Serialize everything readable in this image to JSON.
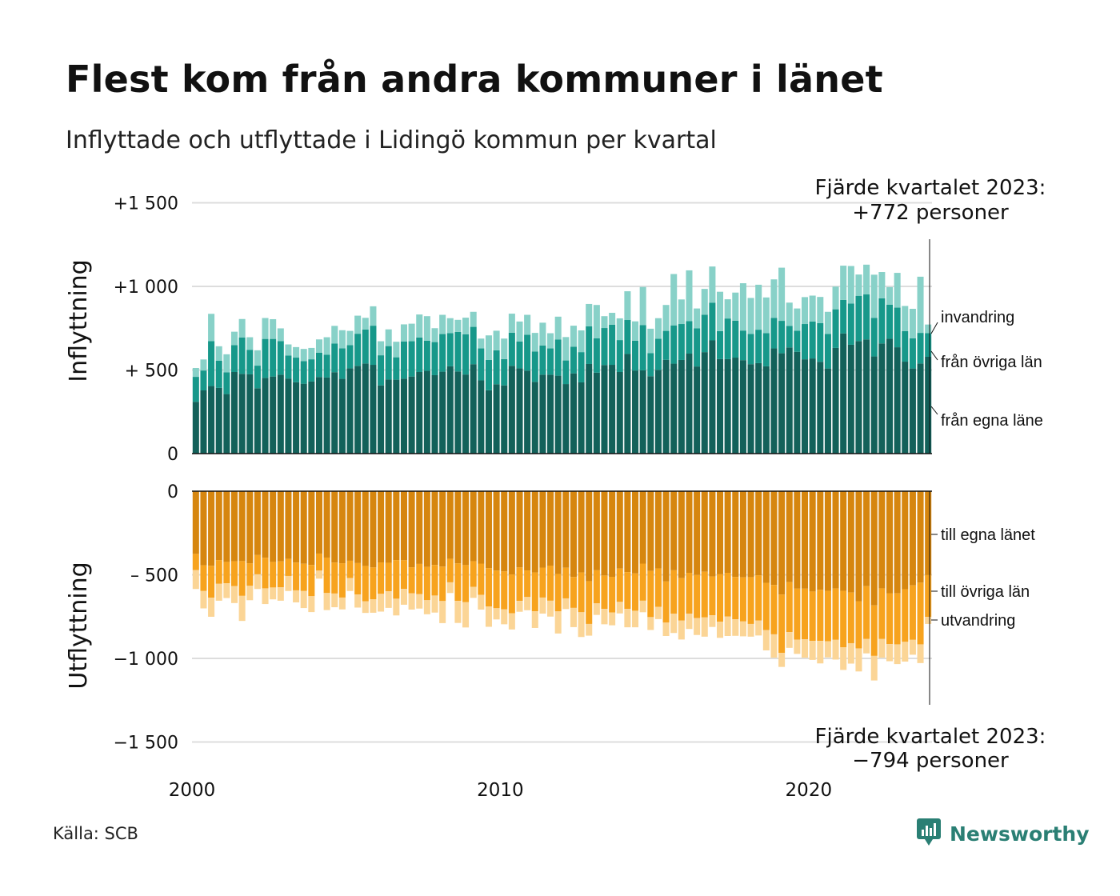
{
  "title": "Flest kom från andra kommuner i länet",
  "subtitle": "Inflyttade och utflyttade i Lidingö kommun per kvartal",
  "source": "Källa: SCB",
  "brand": "Newsworthy",
  "colors": {
    "in_own": "#13615a",
    "in_other": "#17988a",
    "in_imm": "#88d1c8",
    "out_own": "#d6860f",
    "out_other": "#f7a31e",
    "out_emi": "#fbd596",
    "grid": "#dddddd",
    "brand": "#2a7f74"
  },
  "annotations": {
    "top_line1": "Fjärde kvartalet 2023:",
    "top_line2": "+772 personer",
    "bottom_line1": "Fjärde kvartalet 2023:",
    "bottom_line2": "−794 personer"
  },
  "chart_data": {
    "type": "bar",
    "stacked": true,
    "x_start": 2000,
    "quarters": 96,
    "x_ticks": [
      2000,
      2010,
      2020
    ],
    "grid": true,
    "panels": [
      {
        "name": "Inflyttning",
        "ylim": [
          0,
          1500
        ],
        "y_ticks": [
          0,
          500,
          1000,
          1500
        ],
        "y_tick_labels": [
          "0",
          "+  500",
          "+1 000",
          "+1 500"
        ],
        "series": [
          {
            "name": "från egna läne",
            "values": [
              310,
              378,
              404,
              393,
              356,
              488,
              477,
              474,
              391,
              453,
              461,
              472,
              449,
              427,
              418,
              431,
              458,
              455,
              487,
              447,
              510,
              525,
              539,
              531,
              408,
              443,
              442,
              448,
              461,
              488,
              495,
              469,
              490,
              522,
              491,
              473,
              535,
              438,
              379,
              415,
              408,
              525,
              510,
              496,
              429,
              472,
              472,
              466,
              416,
              480,
              426,
              536,
              484,
              530,
              531,
              488,
              596,
              497,
              498,
              463,
              501,
              561,
              538,
              560,
              598,
              521,
              607,
              677,
              566,
              565,
              574,
              559,
              535,
              541,
              522,
              629,
              600,
              635,
              609,
              564,
              569,
              549,
              509,
              632,
              719,
              651,
              673,
              683,
              581,
              659,
              687,
              636,
              550,
              509,
              539,
              579
            ]
          },
          {
            "name": "från övriga län",
            "values": [
              149,
              119,
              269,
              162,
              130,
              161,
              218,
              147,
              135,
              233,
              225,
              201,
              138,
              147,
              135,
              133,
              145,
              136,
              171,
              183,
              139,
              192,
              203,
              234,
              180,
              200,
              134,
              223,
              211,
              206,
              180,
              198,
              225,
              199,
              237,
              241,
              223,
              191,
              181,
              203,
              157,
              198,
              161,
              215,
              182,
              175,
              157,
              216,
              141,
              159,
              181,
              225,
              205,
              221,
              240,
              191,
              203,
              178,
              270,
              138,
              186,
              173,
              229,
              215,
              194,
              228,
              224,
              226,
              167,
              243,
              221,
              177,
              181,
              200,
              198,
              182,
              194,
              129,
              126,
              211,
              221,
              231,
              207,
              231,
              200,
              247,
              271,
              269,
              230,
              270,
              203,
              237,
              183,
              181,
              183,
              142
            ]
          },
          {
            "name": "invandring",
            "values": [
              53,
              66,
              163,
              87,
              108,
              80,
              110,
              75,
              92,
              125,
              118,
              76,
              66,
              63,
              73,
              68,
              80,
              105,
              106,
              108,
              85,
              108,
              70,
              116,
              84,
              100,
              93,
              102,
              105,
              138,
              147,
              83,
              115,
              89,
              72,
              99,
              90,
              59,
              147,
              117,
              123,
              114,
              119,
              119,
              111,
              136,
              91,
              137,
              140,
              126,
              130,
              134,
              200,
              71,
              71,
              130,
              172,
              116,
              229,
              146,
              123,
              155,
              307,
              147,
              304,
              119,
              154,
              216,
              235,
              115,
              168,
              283,
              215,
              269,
              214,
              231,
              318,
              139,
              133,
              161,
              155,
              157,
              132,
              136,
              205,
              224,
              127,
              178,
              259,
              157,
              106,
              208,
              150,
              176,
              336,
              51
            ]
          }
        ]
      },
      {
        "name": "Utflyttning",
        "ylim": [
          -1500,
          0
        ],
        "y_ticks": [
          0,
          -500,
          -1000,
          -1500
        ],
        "y_tick_labels": [
          "0",
          "–  500",
          "−1 000",
          "−1 500"
        ],
        "series": [
          {
            "name": "till egna länet",
            "values": [
              -375,
              -443,
              -446,
              -412,
              -423,
              -419,
              -418,
              -431,
              -382,
              -398,
              -423,
              -420,
              -405,
              -427,
              -434,
              -441,
              -373,
              -397,
              -427,
              -431,
              -416,
              -430,
              -447,
              -456,
              -426,
              -428,
              -412,
              -413,
              -455,
              -435,
              -453,
              -441,
              -451,
              -404,
              -432,
              -442,
              -419,
              -433,
              -460,
              -475,
              -480,
              -498,
              -456,
              -474,
              -486,
              -457,
              -445,
              -495,
              -458,
              -513,
              -486,
              -538,
              -473,
              -504,
              -512,
              -463,
              -484,
              -492,
              -433,
              -477,
              -462,
              -540,
              -473,
              -520,
              -488,
              -501,
              -482,
              -510,
              -497,
              -488,
              -513,
              -515,
              -514,
              -503,
              -548,
              -561,
              -618,
              -544,
              -583,
              -583,
              -600,
              -590,
              -596,
              -582,
              -596,
              -606,
              -658,
              -568,
              -683,
              -581,
              -610,
              -611,
              -586,
              -563,
              -547,
              -502
            ]
          },
          {
            "name": "till övriga län",
            "values": [
              -97,
              -154,
              -191,
              -142,
              -128,
              -149,
              -208,
              -135,
              -115,
              -183,
              -153,
              -155,
              -102,
              -166,
              -163,
              -187,
              -102,
              -212,
              -185,
              -205,
              -103,
              -188,
              -212,
              -191,
              -188,
              -171,
              -231,
              -171,
              -156,
              -181,
              -199,
              -183,
              -206,
              -141,
              -224,
              -222,
              -153,
              -187,
              -230,
              -225,
              -227,
              -232,
              -200,
              -159,
              -232,
              -179,
              -210,
              -224,
              -183,
              -185,
              -238,
              -256,
              -198,
              -200,
              -213,
              -199,
              -220,
              -223,
              -222,
              -276,
              -230,
              -246,
              -260,
              -254,
              -244,
              -258,
              -273,
              -232,
              -284,
              -262,
              -253,
              -264,
              -280,
              -271,
              -283,
              -295,
              -349,
              -299,
              -305,
              -303,
              -295,
              -305,
              -302,
              -307,
              -337,
              -303,
              -282,
              -316,
              -302,
              -303,
              -304,
              -305,
              -315,
              -326,
              -369,
              -250
            ]
          },
          {
            "name": "utvandring",
            "values": [
              -113,
              -104,
              -114,
              -101,
              -88,
              -101,
              -150,
              -86,
              -88,
              -94,
              -71,
              -80,
              -90,
              -72,
              -102,
              -95,
              -48,
              -102,
              -82,
              -71,
              -78,
              -78,
              -69,
              -80,
              -106,
              -99,
              -100,
              -95,
              -97,
              -86,
              -84,
              -102,
              -132,
              -64,
              -132,
              -151,
              -66,
              -88,
              -121,
              -67,
              -89,
              -97,
              -65,
              -79,
              -100,
              -96,
              -95,
              -132,
              -64,
              -115,
              -148,
              -70,
              -69,
              -92,
              -77,
              -69,
              -110,
              -99,
              -69,
              -77,
              -73,
              -80,
              -115,
              -113,
              -92,
              -101,
              -115,
              -70,
              -96,
              -116,
              -99,
              -89,
              -76,
              -89,
              -121,
              -140,
              -84,
              -94,
              -85,
              -110,
              -114,
              -135,
              -96,
              -118,
              -136,
              -122,
              -138,
              -86,
              -147,
              -112,
              -103,
              -118,
              -118,
              -89,
              -112,
              -42
            ]
          }
        ]
      }
    ]
  }
}
